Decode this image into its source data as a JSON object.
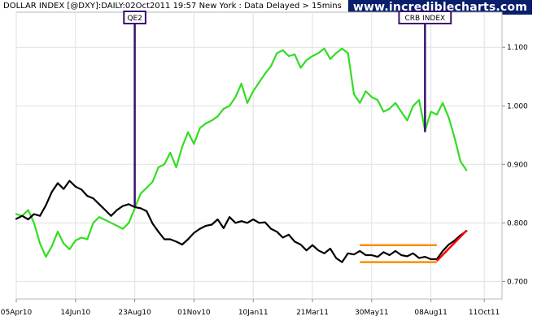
{
  "header": {
    "title": "DOLLAR INDEX [@DXY]:DAILY:02Oct2011 19:57 New York  : Data Delayed > 15mins",
    "brand": "www.incrediblecharts.com"
  },
  "colors": {
    "dollar_index": "#000000",
    "crb_index": "#33dd22",
    "channel": "#ff8c00",
    "trend": "#ff0000",
    "annotation": "#3a1070",
    "grid": "#e0e0e0"
  },
  "chart_data": {
    "type": "line",
    "xlabel": "",
    "ylabel": "",
    "x_ticks": [
      "05Apr10",
      "14Jun10",
      "23Aug10",
      "01Nov10",
      "10Jan11",
      "21Mar11",
      "30May11",
      "08Aug11",
      "11Oct11"
    ],
    "x_tick_positions": [
      0,
      10,
      20,
      30,
      40,
      50,
      60,
      70,
      79
    ],
    "y_ticks": [
      0.7,
      0.8,
      0.9,
      1.0,
      1.1
    ],
    "y_tick_labels": [
      "0.700",
      "0.800",
      "0.900",
      "1.000",
      "1.100"
    ],
    "ylim": [
      0.67,
      1.16
    ],
    "xlim": [
      0,
      82
    ],
    "grid": true,
    "series": [
      {
        "name": "",
        "color": "#000000",
        "x_weeks": [
          0,
          1,
          2,
          3,
          4,
          5,
          6,
          7,
          8,
          9,
          10,
          11,
          12,
          13,
          14,
          15,
          16,
          17,
          18,
          19,
          20,
          21,
          22,
          23,
          24,
          25,
          26,
          27,
          28,
          29,
          30,
          31,
          32,
          33,
          34,
          35,
          36,
          37,
          38,
          39,
          40,
          41,
          42,
          43,
          44,
          45,
          46,
          47,
          48,
          49,
          50,
          51,
          52,
          53,
          54,
          55,
          56,
          57,
          58,
          59,
          60,
          61,
          62,
          63,
          64,
          65,
          66,
          67,
          68,
          69,
          70,
          71,
          72,
          73,
          74,
          75,
          76
        ],
        "values": [
          0.807,
          0.812,
          0.806,
          0.815,
          0.812,
          0.83,
          0.853,
          0.868,
          0.858,
          0.872,
          0.862,
          0.857,
          0.846,
          0.842,
          0.832,
          0.822,
          0.812,
          0.822,
          0.829,
          0.832,
          0.827,
          0.825,
          0.82,
          0.799,
          0.785,
          0.772,
          0.772,
          0.768,
          0.763,
          0.772,
          0.783,
          0.79,
          0.795,
          0.797,
          0.806,
          0.791,
          0.81,
          0.8,
          0.803,
          0.8,
          0.806,
          0.8,
          0.801,
          0.79,
          0.785,
          0.775,
          0.78,
          0.768,
          0.763,
          0.753,
          0.762,
          0.753,
          0.748,
          0.756,
          0.74,
          0.733,
          0.748,
          0.746,
          0.752,
          0.745,
          0.745,
          0.742,
          0.75,
          0.745,
          0.752,
          0.745,
          0.743,
          0.748,
          0.74,
          0.742,
          0.738,
          0.738,
          0.752,
          0.763,
          0.77,
          0.779,
          0.786
        ]
      },
      {
        "name": "",
        "color": "#33dd22",
        "x_weeks": [
          0,
          1,
          2,
          3,
          4,
          5,
          6,
          7,
          8,
          9,
          10,
          11,
          12,
          13,
          14,
          15,
          16,
          17,
          18,
          19,
          20,
          21,
          22,
          23,
          24,
          25,
          26,
          27,
          28,
          29,
          30,
          31,
          32,
          33,
          34,
          35,
          36,
          37,
          38,
          39,
          40,
          41,
          42,
          43,
          44,
          45,
          46,
          47,
          48,
          49,
          50,
          51,
          52,
          53,
          54,
          55,
          56,
          57,
          58,
          59,
          60,
          61,
          62,
          63,
          64,
          65,
          66,
          67,
          68,
          69,
          70,
          71,
          72,
          73,
          74,
          75,
          76
        ],
        "values": [
          0.815,
          0.812,
          0.822,
          0.8,
          0.765,
          0.742,
          0.76,
          0.785,
          0.765,
          0.755,
          0.77,
          0.775,
          0.772,
          0.8,
          0.81,
          0.805,
          0.8,
          0.795,
          0.79,
          0.8,
          0.825,
          0.85,
          0.86,
          0.87,
          0.895,
          0.9,
          0.92,
          0.895,
          0.93,
          0.955,
          0.935,
          0.962,
          0.97,
          0.975,
          0.982,
          0.995,
          1.0,
          1.015,
          1.038,
          1.005,
          1.025,
          1.04,
          1.055,
          1.068,
          1.09,
          1.095,
          1.085,
          1.088,
          1.065,
          1.078,
          1.085,
          1.09,
          1.098,
          1.08,
          1.09,
          1.098,
          1.09,
          1.02,
          1.005,
          1.025,
          1.015,
          1.01,
          0.99,
          0.995,
          1.005,
          0.99,
          0.975,
          1.0,
          1.01,
          0.958,
          0.99,
          0.985,
          1.005,
          0.98,
          0.945,
          0.905,
          0.89
        ]
      }
    ],
    "annotations": [
      {
        "label": "QE2",
        "x_week": 20,
        "value": 0.828
      },
      {
        "label": "CRB INDEX",
        "x_week": 69,
        "value": 0.955
      }
    ],
    "channel": {
      "x_start": 58,
      "x_end": 71,
      "upper": 0.762,
      "lower": 0.733
    },
    "trendline": {
      "x_start": 71,
      "x_end": 76,
      "y_start": 0.735,
      "y_end": 0.787
    }
  }
}
